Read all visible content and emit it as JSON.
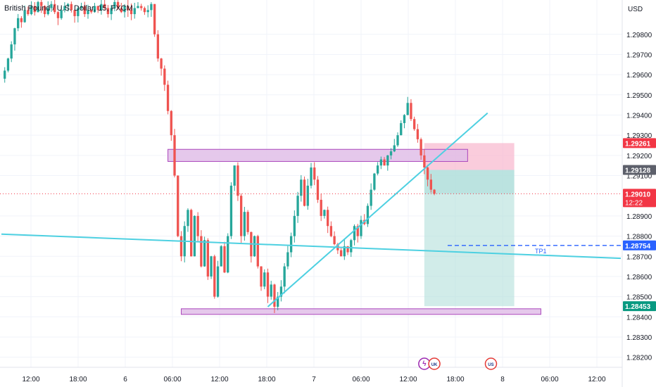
{
  "header": {
    "symbol_title": "British Pound / U.S. Dollar, 15, FXCM",
    "currency": "USD"
  },
  "colors": {
    "candle_up": "#26a69a",
    "candle_down": "#ef5350",
    "trendline": "#4dd0e1",
    "zone_fill": "#e1bee7",
    "zone_stroke": "#ab47bc",
    "stop_fill": "#f8bbd0",
    "target_fill": "#b2dfdb",
    "price_label_red": "#f23645",
    "price_label_gray": "#5d606b",
    "price_label_green": "#089981",
    "tp_label_blue": "#2962ff"
  },
  "chart_data": {
    "type": "candlestick",
    "symbol": "British Pound / U.S. Dollar",
    "timeframe": "15",
    "source": "FXCM",
    "y_axis": {
      "currency": "USD",
      "range": [
        1.2815,
        1.2997
      ],
      "ticks": [
        "1.29800",
        "1.29700",
        "1.29600",
        "1.29500",
        "1.29400",
        "1.29300",
        "1.29200",
        "1.29100",
        "1.28900",
        "1.28800",
        "1.28700",
        "1.28600",
        "1.28500",
        "1.28400",
        "1.28300",
        "1.28200"
      ]
    },
    "x_axis": {
      "ticks": [
        "12:00",
        "18:00",
        "6",
        "06:00",
        "12:00",
        "18:00",
        "7",
        "06:00",
        "12:00",
        "18:00",
        "8",
        "06:00",
        "12:00"
      ]
    },
    "price_path": [
      [
        0,
        1.2958
      ],
      [
        1,
        1.2962
      ],
      [
        2,
        1.2968
      ],
      [
        3,
        1.2975
      ],
      [
        4,
        1.2983
      ],
      [
        5,
        1.2988
      ],
      [
        6,
        1.2986
      ],
      [
        7,
        1.2992
      ],
      [
        8,
        1.299
      ],
      [
        9,
        1.2994
      ],
      [
        10,
        1.2991
      ],
      [
        11,
        1.2996
      ],
      [
        12,
        1.2994
      ],
      [
        13,
        1.299
      ],
      [
        14,
        1.2993
      ],
      [
        15,
        1.2995
      ],
      [
        16,
        1.2991
      ],
      [
        17,
        1.2988
      ],
      [
        18,
        1.2992
      ],
      [
        19,
        1.2994
      ],
      [
        20,
        1.2995
      ],
      [
        21,
        1.2992
      ],
      [
        22,
        1.2989
      ],
      [
        23,
        1.2993
      ],
      [
        24,
        1.2994
      ],
      [
        25,
        1.299
      ],
      [
        26,
        1.2992
      ],
      [
        27,
        1.2991
      ],
      [
        28,
        1.2994
      ],
      [
        29,
        1.2992
      ],
      [
        30,
        1.2995
      ],
      [
        31,
        1.2993
      ],
      [
        32,
        1.299
      ],
      [
        33,
        1.2993
      ],
      [
        34,
        1.2996
      ],
      [
        35,
        1.2993
      ],
      [
        36,
        1.2991
      ],
      [
        37,
        1.2994
      ],
      [
        38,
        1.2992
      ],
      [
        39,
        1.299
      ],
      [
        40,
        1.2993
      ],
      [
        41,
        1.2994
      ],
      [
        42,
        1.2993
      ],
      [
        43,
        1.2991
      ],
      [
        44,
        1.2992
      ],
      [
        45,
        1.2995
      ],
      [
        46,
        1.298
      ],
      [
        47,
        1.2968
      ],
      [
        48,
        1.2963
      ],
      [
        49,
        1.2955
      ],
      [
        50,
        1.2942
      ],
      [
        51,
        1.293
      ],
      [
        52,
        1.291
      ],
      [
        53,
        1.288
      ],
      [
        54,
        1.287
      ],
      [
        55,
        1.2885
      ],
      [
        56,
        1.2893
      ],
      [
        57,
        1.287
      ],
      [
        58,
        1.289
      ],
      [
        59,
        1.288
      ],
      [
        60,
        1.2865
      ],
      [
        61,
        1.2878
      ],
      [
        62,
        1.286
      ],
      [
        63,
        1.287
      ],
      [
        64,
        1.285
      ],
      [
        65,
        1.2865
      ],
      [
        66,
        1.2875
      ],
      [
        67,
        1.2862
      ],
      [
        68,
        1.288
      ],
      [
        69,
        1.2905
      ],
      [
        70,
        1.2915
      ],
      [
        71,
        1.29
      ],
      [
        72,
        1.288
      ],
      [
        73,
        1.2892
      ],
      [
        74,
        1.2882
      ],
      [
        75,
        1.287
      ],
      [
        76,
        1.288
      ],
      [
        77,
        1.2865
      ],
      [
        78,
        1.2855
      ],
      [
        79,
        1.2862
      ],
      [
        80,
        1.285
      ],
      [
        81,
        1.2856
      ],
      [
        82,
        1.2845
      ],
      [
        83,
        1.285
      ],
      [
        84,
        1.2855
      ],
      [
        85,
        1.2865
      ],
      [
        86,
        1.2872
      ],
      [
        87,
        1.288
      ],
      [
        88,
        1.289
      ],
      [
        89,
        1.29
      ],
      [
        90,
        1.2908
      ],
      [
        91,
        1.2895
      ],
      [
        92,
        1.2905
      ],
      [
        93,
        1.2914
      ],
      [
        94,
        1.2908
      ],
      [
        95,
        1.2898
      ],
      [
        96,
        1.289
      ],
      [
        97,
        1.2893
      ],
      [
        98,
        1.2885
      ],
      [
        99,
        1.288
      ],
      [
        100,
        1.2876
      ],
      [
        101,
        1.2873
      ],
      [
        102,
        1.287
      ],
      [
        103,
        1.2875
      ],
      [
        104,
        1.2872
      ],
      [
        105,
        1.2878
      ],
      [
        106,
        1.2885
      ],
      [
        107,
        1.288
      ],
      [
        108,
        1.2888
      ],
      [
        109,
        1.2886
      ],
      [
        110,
        1.2895
      ],
      [
        111,
        1.2903
      ],
      [
        112,
        1.2911
      ],
      [
        113,
        1.2915
      ],
      [
        114,
        1.2918
      ],
      [
        115,
        1.2915
      ],
      [
        116,
        1.292
      ],
      [
        117,
        1.2922
      ],
      [
        118,
        1.2925
      ],
      [
        119,
        1.293
      ],
      [
        120,
        1.2936
      ],
      [
        121,
        1.294
      ],
      [
        122,
        1.2946
      ],
      [
        123,
        1.2938
      ],
      [
        124,
        1.2933
      ],
      [
        125,
        1.2928
      ],
      [
        126,
        1.292
      ],
      [
        127,
        1.2914
      ],
      [
        128,
        1.2908
      ],
      [
        129,
        1.2903
      ],
      [
        130,
        1.2901
      ]
    ],
    "zones": [
      {
        "name": "resistance-zone",
        "x_from": 50,
        "x_to": 140,
        "y_low": 1.2917,
        "y_high": 1.2923
      },
      {
        "name": "support-zone",
        "x_from": 54,
        "x_to": 162,
        "y_low": 1.28415,
        "y_high": 1.2844
      }
    ],
    "trendlines": [
      {
        "name": "rising-trendline",
        "x1": 80,
        "y1": 1.2845,
        "x2": 146,
        "y2": 1.2941
      },
      {
        "name": "falling-trendline",
        "x1": 0,
        "y1": 1.2881,
        "x2": 186,
        "y2": 1.2869
      }
    ],
    "position": {
      "type": "short",
      "x_from": 127,
      "x_to": 154,
      "stop": 1.29261,
      "entry": 1.29128,
      "current": 1.2901,
      "target": 1.28453
    },
    "tp_line": {
      "price": 1.28754,
      "x_from": 134,
      "label": "TP1"
    },
    "price_labels": [
      {
        "price": 1.29261,
        "text": "1.29261",
        "style": "red"
      },
      {
        "price": 1.29128,
        "text": "1.29128",
        "style": "gray"
      },
      {
        "price": 1.2901,
        "text": "1.29010",
        "sub": "12:22",
        "style": "red"
      },
      {
        "price": 1.28754,
        "text": "1.28754",
        "style": "blue"
      },
      {
        "price": 1.28453,
        "text": "1.28453",
        "style": "green"
      }
    ],
    "event_icons": [
      {
        "x": 127,
        "label": "ϟ",
        "name": "lightning-event-icon"
      },
      {
        "x": 130,
        "label": "UK",
        "name": "uk-flag-event-icon"
      },
      {
        "x": 147,
        "label": "US",
        "name": "us-flag-event-icon"
      }
    ]
  }
}
